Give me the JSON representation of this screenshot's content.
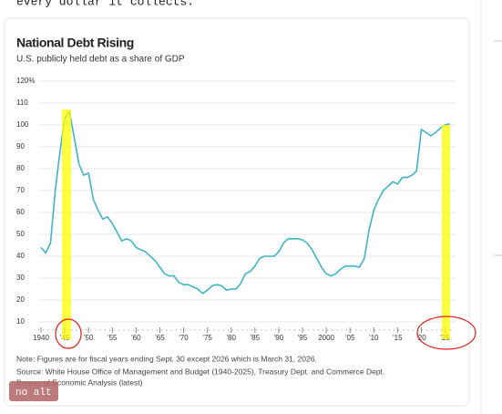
{
  "page": {
    "lead_text": "every dollar it collects.",
    "badge": "no alt"
  },
  "chart_data": {
    "type": "line",
    "title": "National Debt Rising",
    "subtitle": "U.S. publicly held debt as a share of GDP",
    "note": "Note: Figures are for fiscal years ending Sept. 30 except 2026 which is March 31, 2026.",
    "source": "Source: White House Office of Management and Budget (1940-2025), Treasury Dept. and Commerce Dept.",
    "source_cont": "Bureau of Economic Analysis (latest)",
    "color": "#3fb4c4",
    "x": [
      1940,
      1941,
      1942,
      1943,
      1944,
      1945,
      1946,
      1947,
      1948,
      1949,
      1950,
      1951,
      1952,
      1953,
      1954,
      1955,
      1956,
      1957,
      1958,
      1959,
      1960,
      1961,
      1962,
      1963,
      1964,
      1965,
      1966,
      1967,
      1968,
      1969,
      1970,
      1971,
      1972,
      1973,
      1974,
      1975,
      1976,
      1977,
      1978,
      1979,
      1980,
      1981,
      1982,
      1983,
      1984,
      1985,
      1986,
      1987,
      1988,
      1989,
      1990,
      1991,
      1992,
      1993,
      1994,
      1995,
      1996,
      1997,
      1998,
      1999,
      2000,
      2001,
      2002,
      2003,
      2004,
      2005,
      2006,
      2007,
      2008,
      2009,
      2010,
      2011,
      2012,
      2013,
      2014,
      2015,
      2016,
      2017,
      2018,
      2019,
      2020,
      2021,
      2022,
      2023,
      2024,
      2025,
      2026
    ],
    "values": [
      44,
      41.5,
      46,
      70,
      88,
      103,
      106,
      94,
      82,
      77,
      78,
      66,
      61,
      57,
      58,
      55,
      51,
      47,
      48,
      47,
      44,
      43,
      42,
      40,
      38,
      35,
      32,
      31,
      31,
      28,
      27,
      27,
      26,
      25,
      23,
      24.5,
      26.5,
      27,
      26.5,
      24.5,
      25,
      25,
      27.5,
      32,
      33,
      35.5,
      39,
      40,
      40,
      40,
      42,
      46,
      48,
      48,
      48,
      47.5,
      46,
      43,
      39,
      35,
      32,
      31,
      32,
      34,
      35.5,
      35.5,
      35.5,
      35,
      39,
      52,
      61,
      66,
      70,
      72,
      74,
      73,
      76,
      76,
      77,
      79,
      98,
      96.5,
      95,
      96.5,
      98.5,
      100,
      100.5
    ],
    "xlim": [
      1938,
      2027
    ],
    "xticks": [
      {
        "value": 1940,
        "label": "1940"
      },
      {
        "value": 1945,
        "label": "'45"
      },
      {
        "value": 1950,
        "label": "'50"
      },
      {
        "value": 1955,
        "label": "'55"
      },
      {
        "value": 1960,
        "label": "'60"
      },
      {
        "value": 1965,
        "label": "'65"
      },
      {
        "value": 1970,
        "label": "'70"
      },
      {
        "value": 1975,
        "label": "'75"
      },
      {
        "value": 1980,
        "label": "'80"
      },
      {
        "value": 1985,
        "label": "'85"
      },
      {
        "value": 1990,
        "label": "'90"
      },
      {
        "value": 1995,
        "label": "'95"
      },
      {
        "value": 2000,
        "label": "2000"
      },
      {
        "value": 2005,
        "label": "'05"
      },
      {
        "value": 2010,
        "label": "'10"
      },
      {
        "value": 2015,
        "label": "'15"
      },
      {
        "value": 2020,
        "label": "'20"
      },
      {
        "value": 2025,
        "label": "'25"
      }
    ],
    "ylim": [
      6,
      121
    ],
    "yticks": [
      10,
      20,
      30,
      40,
      50,
      60,
      70,
      80,
      90,
      100,
      110,
      {
        "value": 120,
        "label": "120%"
      }
    ],
    "grid": true
  }
}
